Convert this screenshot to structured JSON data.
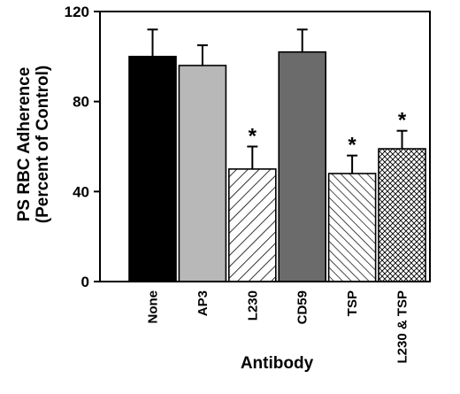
{
  "chart_data": {
    "type": "bar",
    "title": "",
    "ylabel": "PS RBC Adherence",
    "ylabel_sub": "(Percent of Control)",
    "xlabel": "Antibody",
    "ylim": [
      0,
      120
    ],
    "yticks": [
      0,
      40,
      80,
      120
    ],
    "categories": [
      "None",
      "AP3",
      "L230",
      "CD59",
      "TSP",
      "L230 & TSP"
    ],
    "values": [
      100,
      96,
      50,
      102,
      48,
      59
    ],
    "errors": [
      12,
      9,
      10,
      10,
      8,
      8
    ],
    "significant": [
      false,
      false,
      true,
      false,
      true,
      true
    ],
    "significance_marker": "*",
    "fills": [
      "solid-black",
      "solid-light-gray",
      "diagonal-hatch",
      "solid-dark-gray",
      "diagonal-hatch-reverse",
      "crosshatch"
    ],
    "colors": {
      "black": "#000000",
      "light_gray": "#b8b8b8",
      "dark_gray": "#6b6b6b"
    },
    "grid": false,
    "legend": "none"
  }
}
